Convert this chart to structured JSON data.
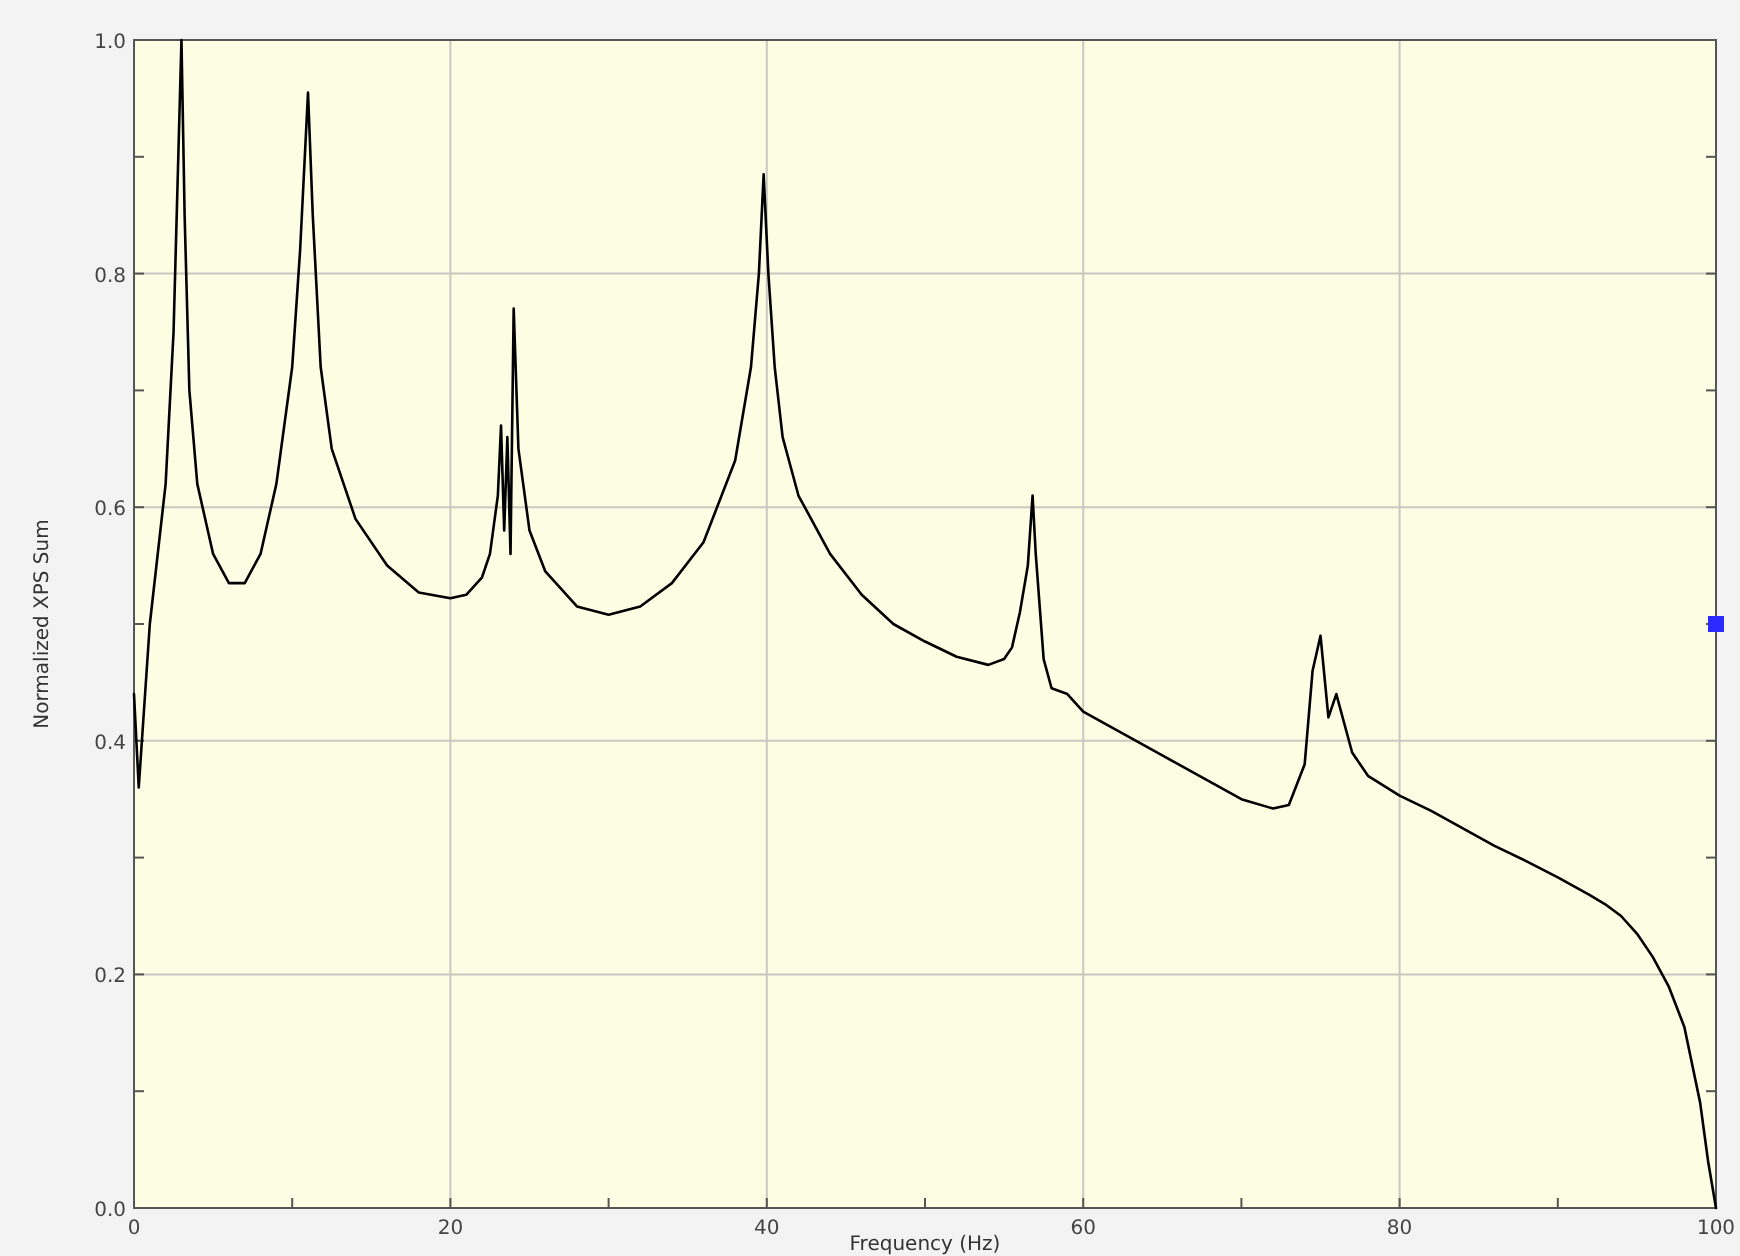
{
  "chart_data": {
    "type": "line",
    "xlabel": "Frequency (Hz)",
    "ylabel": "Normalized XPS Sum",
    "xlim": [
      0,
      100
    ],
    "ylim": [
      0,
      1
    ],
    "xticks": [
      0,
      {
        "value": 10,
        "label": null
      },
      20,
      {
        "value": 30,
        "label": null
      },
      40,
      {
        "value": 50,
        "label": null
      },
      60,
      {
        "value": 70,
        "label": null
      },
      80,
      {
        "value": 90,
        "label": null
      },
      100
    ],
    "yticks": [
      {
        "value": 0,
        "label": "0.0"
      },
      {
        "value": 0.1,
        "label": null
      },
      0.2,
      {
        "value": 0.3,
        "label": null
      },
      0.4,
      {
        "value": 0.5,
        "label": null
      },
      0.6,
      {
        "value": 0.7,
        "label": null
      },
      0.8,
      {
        "value": 0.9,
        "label": null
      },
      {
        "value": 1,
        "label": "1.0"
      }
    ],
    "grid": true,
    "marker": "none",
    "line_style": "solid",
    "series": [
      {
        "color": "#000000",
        "x": [
          0,
          0.3,
          1,
          2,
          2.5,
          2.8,
          3,
          3.2,
          3.5,
          4,
          5,
          6,
          7,
          8,
          9,
          10,
          10.5,
          11,
          11.3,
          11.8,
          12.5,
          14,
          16,
          18,
          20,
          21,
          22,
          22.5,
          23,
          23.2,
          23.4,
          23.6,
          23.8,
          24,
          24.3,
          25,
          26,
          28,
          30,
          32,
          34,
          36,
          38,
          39,
          39.5,
          39.8,
          40.1,
          40.5,
          41,
          42,
          44,
          46,
          48,
          50,
          52,
          54,
          55,
          55.5,
          56,
          56.5,
          56.8,
          57,
          57.5,
          58,
          59,
          60,
          62,
          64,
          66,
          68,
          70,
          72,
          73,
          74,
          74.5,
          75,
          75.5,
          76,
          77,
          78,
          80,
          82,
          84,
          86,
          88,
          90,
          92,
          93,
          94,
          95,
          96,
          97,
          98,
          99,
          99.5,
          100
        ],
        "values": [
          0.44,
          0.36,
          0.5,
          0.62,
          0.75,
          0.9,
          1.0,
          0.85,
          0.7,
          0.62,
          0.56,
          0.535,
          0.535,
          0.56,
          0.62,
          0.72,
          0.82,
          0.955,
          0.85,
          0.72,
          0.65,
          0.59,
          0.55,
          0.527,
          0.522,
          0.525,
          0.54,
          0.56,
          0.61,
          0.67,
          0.58,
          0.66,
          0.56,
          0.77,
          0.65,
          0.58,
          0.545,
          0.515,
          0.508,
          0.515,
          0.535,
          0.57,
          0.64,
          0.72,
          0.8,
          0.885,
          0.8,
          0.72,
          0.66,
          0.61,
          0.56,
          0.525,
          0.5,
          0.485,
          0.472,
          0.465,
          0.47,
          0.48,
          0.51,
          0.55,
          0.61,
          0.56,
          0.47,
          0.445,
          0.44,
          0.425,
          0.41,
          0.395,
          0.38,
          0.365,
          0.35,
          0.342,
          0.345,
          0.38,
          0.46,
          0.49,
          0.42,
          0.44,
          0.39,
          0.37,
          0.353,
          0.34,
          0.325,
          0.31,
          0.297,
          0.283,
          0.268,
          0.26,
          0.25,
          0.235,
          0.215,
          0.19,
          0.155,
          0.09,
          0.04,
          0.0
        ]
      }
    ]
  }
}
